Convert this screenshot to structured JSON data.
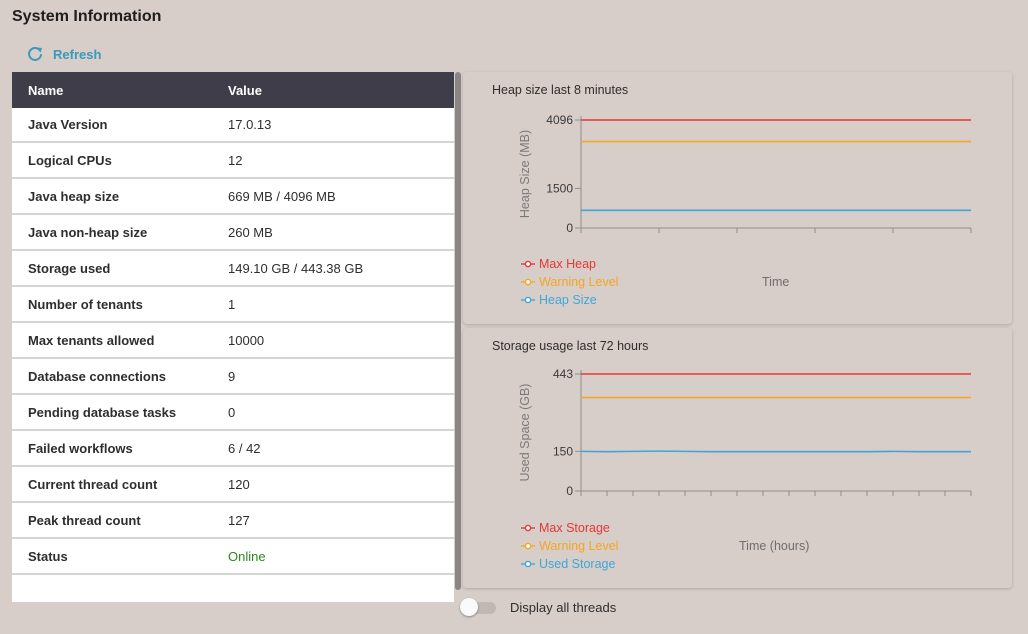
{
  "page": {
    "title": "System Information",
    "refresh_label": "Refresh"
  },
  "table": {
    "headers": {
      "name": "Name",
      "value": "Value"
    },
    "rows": [
      {
        "name": "Java Version",
        "value": "17.0.13"
      },
      {
        "name": "Logical CPUs",
        "value": "12"
      },
      {
        "name": "Java heap size",
        "value": "669 MB / 4096 MB"
      },
      {
        "name": "Java non-heap size",
        "value": "260 MB"
      },
      {
        "name": "Storage used",
        "value": "149.10 GB / 443.38 GB"
      },
      {
        "name": "Number of tenants",
        "value": "1"
      },
      {
        "name": "Max tenants allowed",
        "value": "10000"
      },
      {
        "name": "Database connections",
        "value": "9"
      },
      {
        "name": "Pending database tasks",
        "value": "0"
      },
      {
        "name": "Failed workflows",
        "value": "6 / 42"
      },
      {
        "name": "Current thread count",
        "value": "120"
      },
      {
        "name": "Peak thread count",
        "value": "127"
      },
      {
        "name": "Status",
        "value": "Online"
      }
    ]
  },
  "toggle": {
    "label": "Display all threads",
    "on": false
  },
  "chart_data": [
    {
      "type": "line",
      "title": "Heap size last 8 minutes",
      "xlabel": "Time",
      "ylabel": "Heap Size (MB)",
      "ylim": [
        0,
        4096
      ],
      "yticks": [
        "0",
        "1500",
        "4096"
      ],
      "x": [
        0,
        1,
        2,
        3,
        4,
        5,
        6,
        7,
        8,
        9,
        10
      ],
      "series": [
        {
          "name": "Max Heap",
          "color": "#e53935",
          "values": [
            4096,
            4096,
            4096,
            4096,
            4096,
            4096,
            4096,
            4096,
            4096,
            4096,
            4096
          ]
        },
        {
          "name": "Warning Level",
          "color": "#f5a623",
          "values": [
            3277,
            3277,
            3277,
            3277,
            3277,
            3277,
            3277,
            3277,
            3277,
            3277,
            3277
          ]
        },
        {
          "name": "Heap Size",
          "color": "#3fa7d6",
          "values": [
            669,
            669,
            669,
            669,
            669,
            669,
            669,
            669,
            669,
            669,
            669
          ]
        }
      ],
      "grid": false,
      "legend": "bottom-left"
    },
    {
      "type": "line",
      "title": "Storage usage last 72 hours",
      "xlabel": "Time (hours)",
      "ylabel": "Used Space (GB)",
      "ylim": [
        0,
        443
      ],
      "yticks": [
        "0",
        "150",
        "443"
      ],
      "x": [
        0,
        1,
        2,
        3,
        4,
        5,
        6,
        7,
        8,
        9,
        10,
        11,
        12,
        13,
        14,
        15
      ],
      "series": [
        {
          "name": "Max Storage",
          "color": "#e53935",
          "values": [
            443,
            443,
            443,
            443,
            443,
            443,
            443,
            443,
            443,
            443,
            443,
            443,
            443,
            443,
            443,
            443
          ]
        },
        {
          "name": "Warning Level",
          "color": "#f5a623",
          "values": [
            354,
            354,
            354,
            354,
            354,
            354,
            354,
            354,
            354,
            354,
            354,
            354,
            354,
            354,
            354,
            354
          ]
        },
        {
          "name": "Used Storage",
          "color": "#3fa7d6",
          "values": [
            150,
            149,
            150,
            151,
            150,
            149,
            149,
            149,
            149,
            149,
            149,
            149,
            150,
            149,
            149,
            149
          ]
        }
      ],
      "grid": false,
      "legend": "bottom-left"
    }
  ]
}
